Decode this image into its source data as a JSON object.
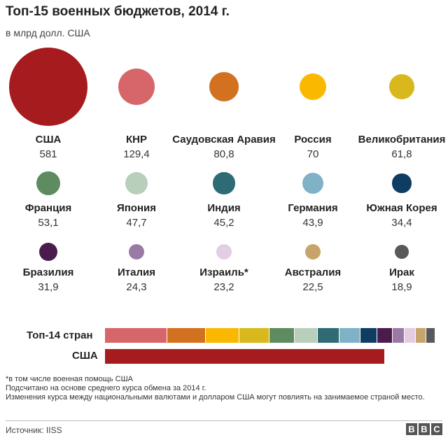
{
  "header": {
    "title": "Топ-15 военных бюджетов, 2014 г.",
    "subtitle": "в млрд долл. США"
  },
  "chart_data": [
    {
      "type": "bubble",
      "title": "Топ-15 военных бюджетов, 2014 г.",
      "unit": "в млрд долл. США",
      "items": [
        {
          "name": "США",
          "value": 581,
          "label": "581",
          "color": "#a61b1e"
        },
        {
          "name": "КНР",
          "value": 129.4,
          "label": "129,4",
          "color": "#d6666a"
        },
        {
          "name": "Саудовская Аравия",
          "value": 80.8,
          "label": "80,8",
          "color": "#d2711f"
        },
        {
          "name": "Россия",
          "value": 70,
          "label": "70",
          "color": "#fbb800"
        },
        {
          "name": "Великобритания",
          "value": 61.8,
          "label": "61,8",
          "color": "#d8b81c"
        },
        {
          "name": "Франция",
          "value": 53.1,
          "label": "53,1",
          "color": "#5e8b5f"
        },
        {
          "name": "Япония",
          "value": 47.7,
          "label": "47,7",
          "color": "#b8cfbb"
        },
        {
          "name": "Индия",
          "value": 45.2,
          "label": "45,2",
          "color": "#2e6b74"
        },
        {
          "name": "Германия",
          "value": 43.9,
          "label": "43,9",
          "color": "#7fb1c7"
        },
        {
          "name": "Южная Корея",
          "value": 34.4,
          "label": "34,4",
          "color": "#0f3c62"
        },
        {
          "name": "Бразилия",
          "value": 31.9,
          "label": "31,9",
          "color": "#4a1b4d"
        },
        {
          "name": "Италия",
          "value": 24.3,
          "label": "24,3",
          "color": "#9a7aa4"
        },
        {
          "name": "Израиль*",
          "value": 23.2,
          "label": "23,2",
          "color": "#e3cde2"
        },
        {
          "name": "Австралия",
          "value": 22.5,
          "label": "22,5",
          "color": "#c7a46b"
        },
        {
          "name": "Ирак",
          "value": 18.9,
          "label": "18,9",
          "color": "#595959"
        }
      ]
    },
    {
      "type": "stacked-bar",
      "rows": [
        {
          "label": "Топ-14 стран",
          "segments": "items 2-15"
        },
        {
          "label": "США",
          "segments": "item 1"
        }
      ]
    }
  ],
  "notes": {
    "line1": "*в том числе военная помощь США",
    "line2": "Подсчитано на основе среднего курса обмена за 2014 г.",
    "line3": "Изменения курса между национальными валютами и долларом США могут повлиять на занимаемое страной место."
  },
  "footer": {
    "source": "Источник: IISS",
    "logo": [
      "B",
      "B",
      "C"
    ]
  }
}
